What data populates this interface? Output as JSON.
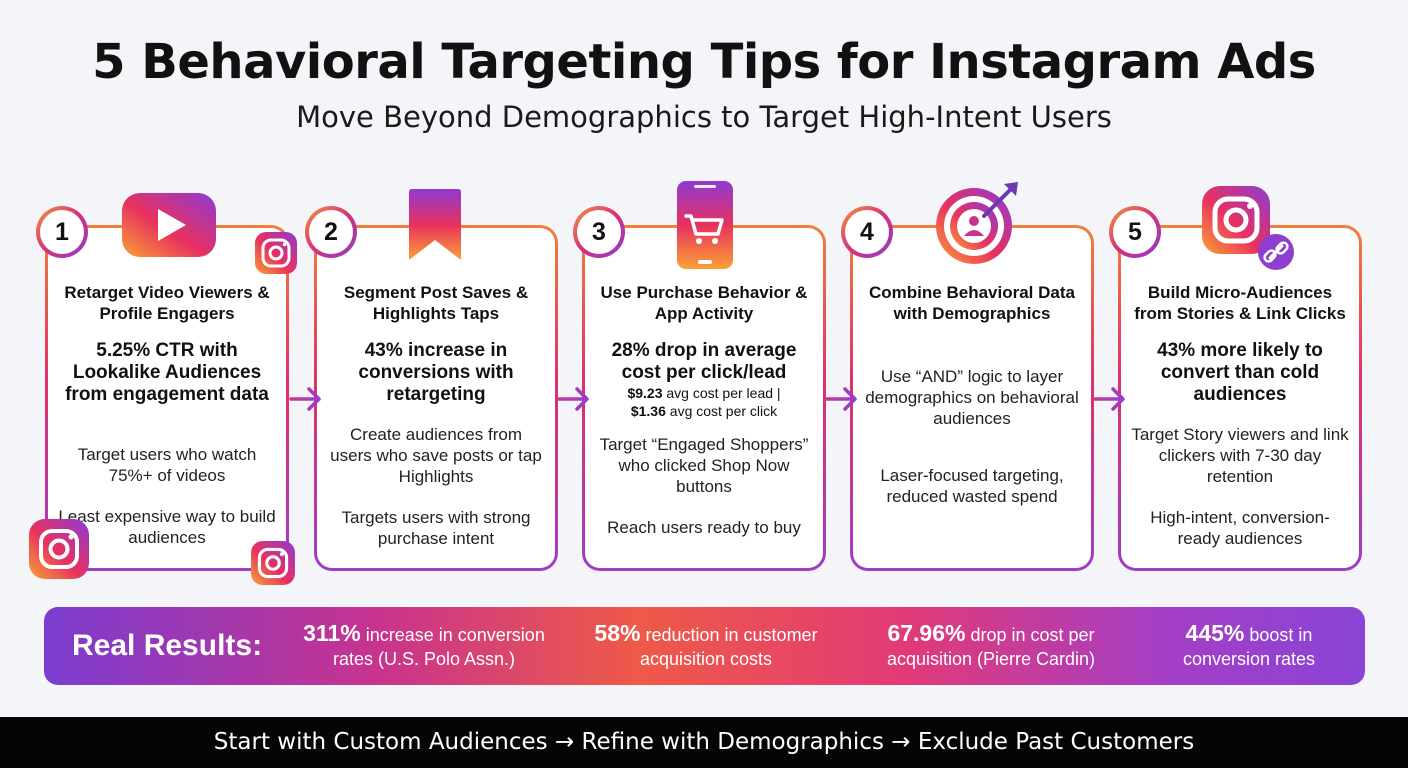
{
  "title": "5 Behavioral Targeting Tips for Instagram Ads",
  "subtitle": "Move Beyond Demographics to Target High-Intent Users",
  "colors": {
    "accent_orange": "#f0803a",
    "accent_pink": "#e0306a",
    "accent_purple": "#a03cc8"
  },
  "tips": [
    {
      "number": "1",
      "icon": "youtube-play-icon",
      "heading": "Retarget Video Viewers & Profile Engagers",
      "stat": "5.25% CTR with Lookalike Audiences from engagement data",
      "text1": "Target users who watch 75%+ of videos",
      "text2": "Least expensive way to build audiences"
    },
    {
      "number": "2",
      "icon": "bookmark-icon",
      "heading": "Segment Post Saves & Highlights Taps",
      "stat": "43% increase in conversions with retargeting",
      "text1": "Create audiences from users who save posts or tap Highlights",
      "text2": "Targets users with strong purchase intent"
    },
    {
      "number": "3",
      "icon": "phone-cart-icon",
      "heading": "Use Purchase Behavior & App Activity",
      "stat": "28% drop in average cost per click/lead",
      "stat2_a_value": "$9.23",
      "stat2_a_text": "avg cost per lead |",
      "stat2_b_value": "$1.36",
      "stat2_b_text": "avg cost per click",
      "text1": "Target “Engaged Shoppers” who clicked Shop Now buttons",
      "text2": "Reach users ready to buy"
    },
    {
      "number": "4",
      "icon": "target-user-icon",
      "heading": "Combine Behavioral Data with Demographics",
      "text1": "Use “AND” logic to layer demographics on behavioral audiences",
      "text2": "Laser-focused targeting, reduced wasted spend"
    },
    {
      "number": "5",
      "icon": "instagram-link-icon",
      "heading": "Build Micro-Audiences from Stories & Link Clicks",
      "stat": "43% more likely to convert than cold audiences",
      "text1": "Target Story viewers and link clickers with 7-30 day retention",
      "text2": "High-intent, conversion-ready audiences"
    }
  ],
  "results": {
    "label": "Real Results:",
    "items": [
      {
        "value": "311%",
        "text_a": "increase in conversion",
        "text_b": "rates (U.S. Polo Assn.)"
      },
      {
        "value": "58%",
        "text_a": "reduction in customer",
        "text_b": "acquisition costs"
      },
      {
        "value": "67.96%",
        "text_a": "drop in cost per",
        "text_b": "acquisition (Pierre Cardin)"
      },
      {
        "value": "445%",
        "text_a": "boost in",
        "text_b": "conversion rates"
      }
    ]
  },
  "footer": "Start with Custom Audiences → Refine with Demographics → Exclude Past Customers"
}
